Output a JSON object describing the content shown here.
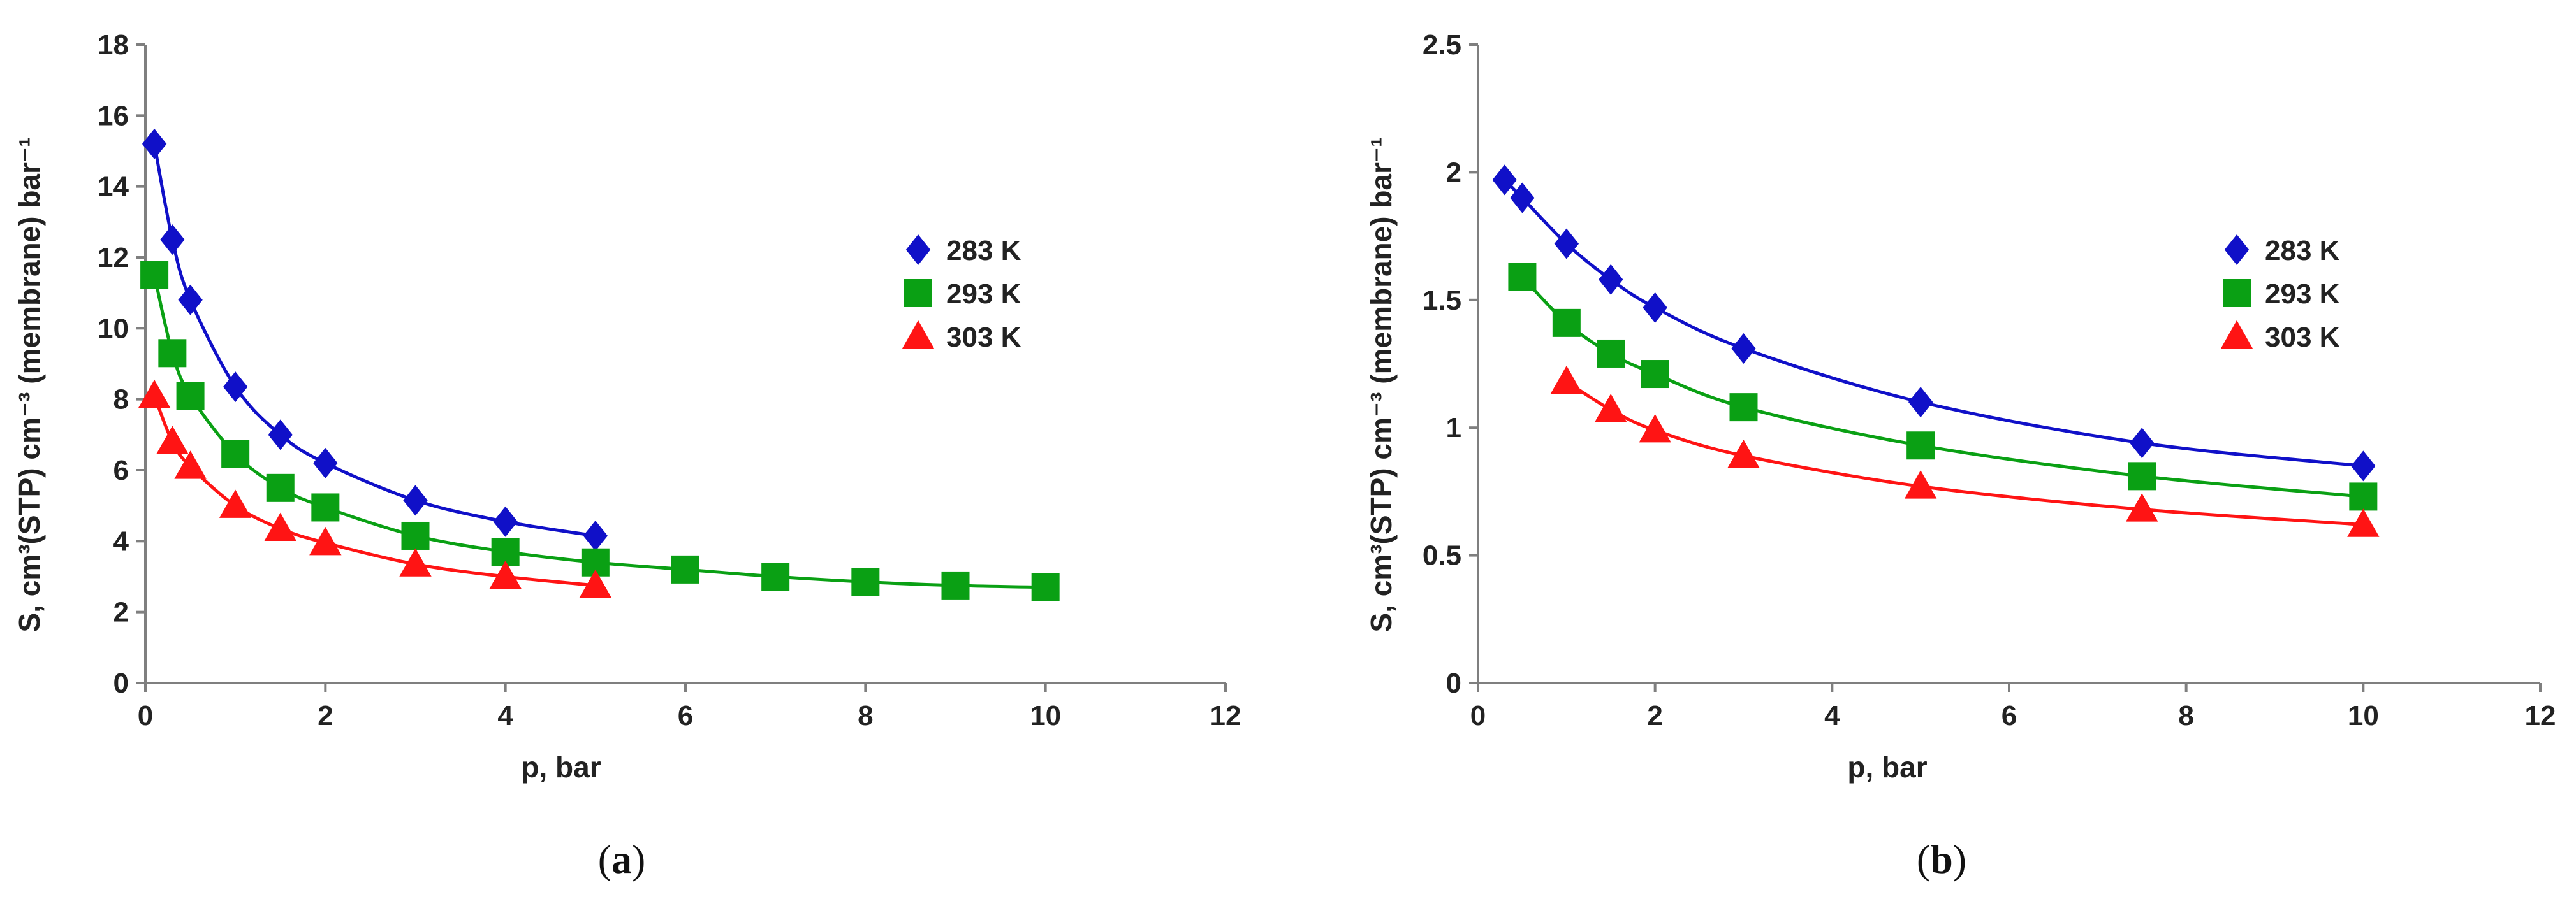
{
  "charts": [
    {
      "panel": "a",
      "panel_label": "(a)",
      "panel_open": "(",
      "panel_letter": "a",
      "panel_close": ")",
      "xlabel": "p, bar",
      "ylabel": "S, cm³(STP) cm⁻³ (membrane) bar⁻¹",
      "xticks": [
        "0",
        "2",
        "4",
        "6",
        "8",
        "10",
        "12"
      ],
      "yticks": [
        "0",
        "2",
        "4",
        "6",
        "8",
        "10",
        "12",
        "14",
        "16",
        "18"
      ]
    },
    {
      "panel": "b",
      "panel_label": "(b)",
      "panel_open": "(",
      "panel_letter": "b",
      "panel_close": ")",
      "xlabel": "p, bar",
      "ylabel": "S, cm³(STP) cm⁻³ (membrane) bar⁻¹",
      "xticks": [
        "0",
        "2",
        "4",
        "6",
        "8",
        "10",
        "12"
      ],
      "yticks": [
        "0",
        "0.5",
        "1",
        "1.5",
        "2",
        "2.5"
      ]
    }
  ],
  "colors": {
    "s283": "#1010c8",
    "s293": "#0aa014",
    "s303": "#ff1414",
    "axis": "#7f7f7f"
  },
  "chart_data": [
    {
      "type": "scatter",
      "title": "",
      "xlabel": "p, bar",
      "ylabel": "S, cm³(STP) cm⁻³ (membrane) bar⁻¹",
      "xlim": [
        0,
        12
      ],
      "ylim": [
        0,
        18
      ],
      "grid": false,
      "legend": "right",
      "series": [
        {
          "name": "283 K",
          "marker": "diamond",
          "color": "#1010c8",
          "x": [
            0.1,
            0.3,
            0.5,
            1.0,
            1.5,
            2.0,
            3.0,
            4.0,
            5.0
          ],
          "y": [
            15.2,
            12.5,
            10.8,
            8.35,
            7.0,
            6.2,
            5.15,
            4.55,
            4.15
          ]
        },
        {
          "name": "293 K",
          "marker": "square",
          "color": "#0aa014",
          "x": [
            0.1,
            0.3,
            0.5,
            1.0,
            1.5,
            2.0,
            3.0,
            4.0,
            5.0,
            6.0,
            7.0,
            8.0,
            9.0,
            10.0
          ],
          "y": [
            11.5,
            9.3,
            8.1,
            6.45,
            5.5,
            4.95,
            4.15,
            3.7,
            3.4,
            3.2,
            3.0,
            2.85,
            2.75,
            2.7
          ]
        },
        {
          "name": "303 K",
          "marker": "triangle",
          "color": "#ff1414",
          "x": [
            0.1,
            0.3,
            0.5,
            1.0,
            1.5,
            2.0,
            3.0,
            4.0,
            5.0
          ],
          "y": [
            8.1,
            6.8,
            6.1,
            5.0,
            4.35,
            3.95,
            3.35,
            3.0,
            2.75
          ]
        }
      ]
    },
    {
      "type": "scatter",
      "title": "",
      "xlabel": "p, bar",
      "ylabel": "S, cm³(STP) cm⁻³ (membrane) bar⁻¹",
      "xlim": [
        0,
        12
      ],
      "ylim": [
        0,
        2.5
      ],
      "grid": false,
      "legend": "right",
      "series": [
        {
          "name": "283 K",
          "marker": "diamond",
          "color": "#1010c8",
          "x": [
            0.3,
            0.5,
            1.0,
            1.5,
            2.0,
            3.0,
            5.0,
            7.5,
            10.0
          ],
          "y": [
            1.97,
            1.9,
            1.72,
            1.58,
            1.47,
            1.31,
            1.1,
            0.94,
            0.85
          ]
        },
        {
          "name": "293 K",
          "marker": "square",
          "color": "#0aa014",
          "x": [
            0.5,
            1.0,
            1.5,
            2.0,
            3.0,
            5.0,
            7.5,
            10.0
          ],
          "y": [
            1.59,
            1.41,
            1.29,
            1.21,
            1.08,
            0.93,
            0.81,
            0.73
          ]
        },
        {
          "name": "303 K",
          "marker": "triangle",
          "color": "#ff1414",
          "x": [
            1.0,
            1.5,
            2.0,
            3.0,
            5.0,
            7.5,
            10.0
          ],
          "y": [
            1.18,
            1.07,
            0.99,
            0.89,
            0.77,
            0.68,
            0.62
          ]
        }
      ]
    }
  ]
}
